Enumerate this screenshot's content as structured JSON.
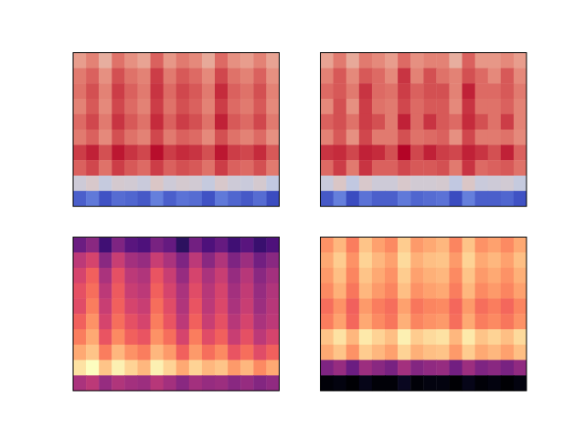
{
  "chart_data": [
    {
      "type": "heatmap",
      "tick_labels": false,
      "color": "coolwarm",
      "cells": [
        [
          58,
          62,
          55,
          64,
          60,
          57,
          66,
          59,
          63,
          61,
          56,
          65,
          60,
          58,
          62,
          57
        ],
        [
          63,
          66,
          60,
          68,
          64,
          62,
          70,
          63,
          67,
          65,
          61,
          69,
          64,
          62,
          66,
          60
        ],
        [
          64,
          68,
          62,
          70,
          66,
          63,
          71,
          65,
          69,
          67,
          63,
          72,
          66,
          64,
          68,
          62
        ],
        [
          62,
          67,
          61,
          69,
          65,
          62,
          70,
          64,
          68,
          66,
          62,
          70,
          65,
          63,
          67,
          61
        ],
        [
          65,
          69,
          63,
          71,
          67,
          64,
          72,
          66,
          70,
          68,
          64,
          73,
          67,
          65,
          69,
          63
        ],
        [
          63,
          66,
          61,
          68,
          64,
          62,
          69,
          63,
          66,
          65,
          61,
          68,
          64,
          62,
          65,
          60
        ],
        [
          70,
          73,
          68,
          74,
          71,
          69,
          75,
          70,
          72,
          71,
          68,
          74,
          70,
          69,
          72,
          67
        ],
        [
          66,
          69,
          64,
          70,
          67,
          65,
          70,
          66,
          68,
          67,
          64,
          70,
          66,
          65,
          68,
          63
        ],
        [
          44,
          47,
          42,
          46,
          45,
          43,
          48,
          44,
          46,
          45,
          42,
          47,
          44,
          43,
          46,
          41
        ],
        [
          18,
          22,
          16,
          20,
          19,
          17,
          23,
          18,
          21,
          20,
          16,
          22,
          19,
          17,
          20,
          15
        ]
      ]
    },
    {
      "type": "heatmap",
      "tick_labels": false,
      "color": "coolwarm",
      "cells": [
        [
          57,
          63,
          56,
          63,
          61,
          58,
          65,
          60,
          62,
          62,
          55,
          66,
          59,
          59,
          61,
          58
        ],
        [
          62,
          67,
          61,
          67,
          65,
          61,
          71,
          62,
          68,
          64,
          62,
          68,
          65,
          61,
          67,
          61
        ],
        [
          65,
          67,
          63,
          71,
          65,
          64,
          70,
          66,
          68,
          68,
          62,
          73,
          65,
          65,
          67,
          63
        ],
        [
          61,
          68,
          60,
          70,
          64,
          63,
          69,
          65,
          67,
          67,
          61,
          71,
          64,
          64,
          66,
          62
        ],
        [
          66,
          68,
          64,
          70,
          68,
          63,
          73,
          65,
          71,
          67,
          65,
          72,
          68,
          64,
          70,
          62
        ],
        [
          62,
          67,
          60,
          69,
          63,
          63,
          68,
          64,
          65,
          66,
          60,
          69,
          63,
          63,
          64,
          61
        ],
        [
          71,
          72,
          69,
          73,
          72,
          68,
          76,
          69,
          73,
          70,
          69,
          73,
          71,
          68,
          73,
          66
        ],
        [
          65,
          70,
          63,
          71,
          66,
          66,
          69,
          67,
          67,
          68,
          63,
          71,
          65,
          66,
          67,
          64
        ],
        [
          43,
          48,
          41,
          47,
          44,
          44,
          47,
          45,
          45,
          46,
          41,
          48,
          43,
          44,
          45,
          42
        ],
        [
          17,
          23,
          15,
          21,
          18,
          18,
          22,
          19,
          20,
          21,
          15,
          23,
          18,
          18,
          19,
          16
        ]
      ]
    },
    {
      "type": "heatmap",
      "tick_labels": false,
      "color": "magma",
      "cells": [
        [
          25,
          30,
          18,
          28,
          22,
          20,
          27,
          24,
          15,
          26,
          20,
          24,
          18,
          22,
          17,
          20
        ],
        [
          38,
          42,
          30,
          40,
          34,
          32,
          40,
          35,
          28,
          38,
          30,
          36,
          28,
          33,
          26,
          30
        ],
        [
          42,
          48,
          35,
          45,
          38,
          36,
          46,
          40,
          32,
          42,
          35,
          40,
          32,
          37,
          30,
          34
        ],
        [
          45,
          50,
          38,
          47,
          40,
          38,
          48,
          42,
          35,
          44,
          37,
          42,
          34,
          39,
          32,
          36
        ],
        [
          44,
          52,
          40,
          48,
          42,
          40,
          50,
          44,
          36,
          46,
          38,
          43,
          35,
          40,
          33,
          37
        ],
        [
          48,
          55,
          42,
          50,
          45,
          42,
          52,
          46,
          38,
          48,
          40,
          45,
          37,
          42,
          35,
          38
        ],
        [
          52,
          58,
          46,
          54,
          48,
          46,
          55,
          50,
          42,
          52,
          44,
          48,
          40,
          45,
          38,
          42
        ],
        [
          58,
          62,
          52,
          60,
          55,
          52,
          60,
          56,
          48,
          56,
          50,
          54,
          46,
          50,
          44,
          48
        ],
        [
          66,
          70,
          62,
          68,
          64,
          60,
          68,
          64,
          58,
          64,
          60,
          62,
          56,
          60,
          54,
          58
        ],
        [
          35,
          38,
          32,
          36,
          34,
          33,
          37,
          34,
          30,
          34,
          32,
          33,
          30,
          32,
          29,
          31
        ]
      ]
    },
    {
      "type": "heatmap",
      "tick_labels": false,
      "color": "magma",
      "cells": [
        [
          55,
          60,
          52,
          62,
          57,
          54,
          63,
          56,
          58,
          60,
          53,
          62,
          55,
          57,
          54,
          58
        ],
        [
          58,
          63,
          55,
          64,
          60,
          57,
          65,
          59,
          61,
          62,
          56,
          64,
          58,
          60,
          57,
          61
        ],
        [
          56,
          61,
          53,
          62,
          58,
          55,
          63,
          57,
          59,
          60,
          54,
          62,
          56,
          58,
          55,
          59
        ],
        [
          54,
          59,
          51,
          60,
          56,
          53,
          61,
          55,
          57,
          58,
          52,
          60,
          54,
          56,
          53,
          57
        ],
        [
          50,
          55,
          48,
          56,
          52,
          50,
          57,
          51,
          53,
          54,
          49,
          56,
          50,
          52,
          49,
          53
        ],
        [
          52,
          57,
          49,
          58,
          54,
          51,
          59,
          53,
          55,
          56,
          50,
          58,
          52,
          54,
          51,
          55
        ],
        [
          62,
          66,
          60,
          67,
          64,
          61,
          68,
          63,
          65,
          66,
          60,
          67,
          62,
          64,
          61,
          65
        ],
        [
          58,
          62,
          55,
          63,
          60,
          57,
          64,
          59,
          61,
          62,
          56,
          63,
          58,
          60,
          57,
          61
        ],
        [
          28,
          32,
          25,
          33,
          30,
          27,
          34,
          29,
          31,
          32,
          26,
          33,
          28,
          30,
          27,
          31
        ],
        [
          5,
          6,
          4,
          7,
          5,
          5,
          8,
          5,
          6,
          6,
          4,
          7,
          5,
          6,
          4,
          6
        ]
      ]
    }
  ]
}
